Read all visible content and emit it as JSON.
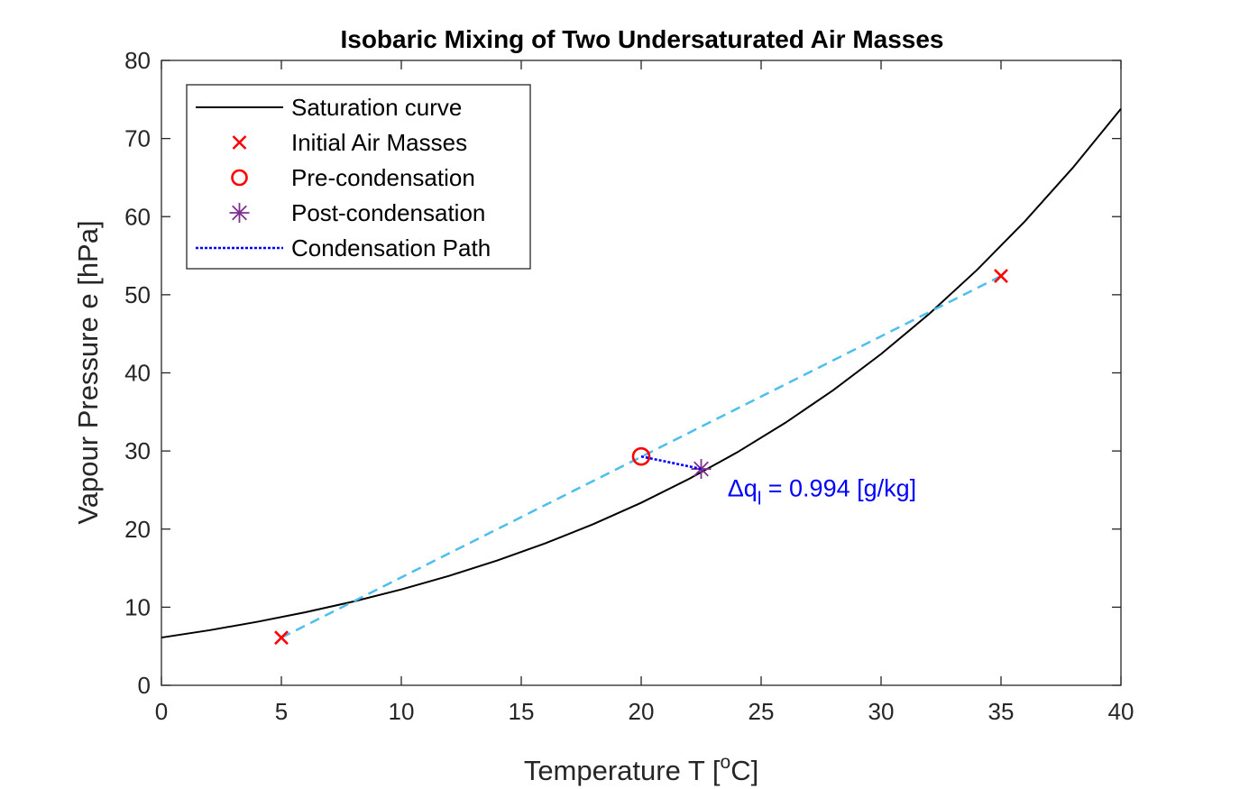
{
  "chart_data": {
    "type": "line",
    "title": "Isobaric Mixing of Two Undersaturated Air Masses",
    "xlabel": {
      "base": "Temperature T [",
      "sup": "o",
      "tail": "C]"
    },
    "ylabel": "Vapour Pressure e [hPa]",
    "xlim": [
      0,
      40
    ],
    "ylim": [
      0,
      80
    ],
    "xticks": [
      "0",
      "5",
      "10",
      "15",
      "20",
      "25",
      "30",
      "35",
      "40"
    ],
    "yticks": [
      "0",
      "10",
      "20",
      "30",
      "40",
      "50",
      "60",
      "70",
      "80"
    ],
    "grid": false,
    "legend_position": "top-left",
    "legend": [
      {
        "label": "Saturation curve",
        "marker": "line",
        "color": "#000000"
      },
      {
        "label": "Initial Air Masses",
        "marker": "x",
        "color": "#ff0000"
      },
      {
        "label": "Pre-condensation",
        "marker": "circle",
        "color": "#ff0000"
      },
      {
        "label": "Post-condensation",
        "marker": "asterisk",
        "color": "#7e2f8e"
      },
      {
        "label": "Condensation Path",
        "marker": "dotted-line",
        "color": "#0000ff"
      }
    ],
    "series": [
      {
        "name": "Saturation curve",
        "color": "#000000",
        "style": "solid",
        "x": [
          0,
          2,
          4,
          6,
          8,
          10,
          12,
          14,
          16,
          18,
          20,
          22,
          24,
          26,
          28,
          30,
          32,
          34,
          36,
          38,
          40
        ],
        "y": [
          6.11,
          7.05,
          8.13,
          9.35,
          10.72,
          12.27,
          14.02,
          15.98,
          18.17,
          20.63,
          23.37,
          26.43,
          29.82,
          33.59,
          37.77,
          42.41,
          47.53,
          53.18,
          59.42,
          66.28,
          73.81
        ]
      },
      {
        "name": "Mixing line",
        "color": "#4dbeee",
        "style": "dashed",
        "x": [
          5,
          35
        ],
        "y": [
          6.1,
          52.4
        ]
      },
      {
        "name": "Initial Air Masses",
        "color": "#ff0000",
        "marker": "x",
        "x": [
          5,
          35
        ],
        "y": [
          6.1,
          52.4
        ]
      },
      {
        "name": "Pre-condensation",
        "color": "#ff0000",
        "marker": "circle",
        "x": [
          20
        ],
        "y": [
          29.3
        ]
      },
      {
        "name": "Post-condensation",
        "color": "#7e2f8e",
        "marker": "asterisk",
        "x": [
          22.5
        ],
        "y": [
          27.7
        ]
      },
      {
        "name": "Condensation Path",
        "color": "#0000ff",
        "style": "dotted",
        "x": [
          20,
          22.5
        ],
        "y": [
          29.3,
          27.7
        ]
      }
    ],
    "annotation": {
      "prefix": "Δq",
      "sub": "l",
      "suffix": " = 0.994 [g/kg]",
      "x": 23.6,
      "y": 25.2,
      "color": "#0000ff"
    }
  }
}
